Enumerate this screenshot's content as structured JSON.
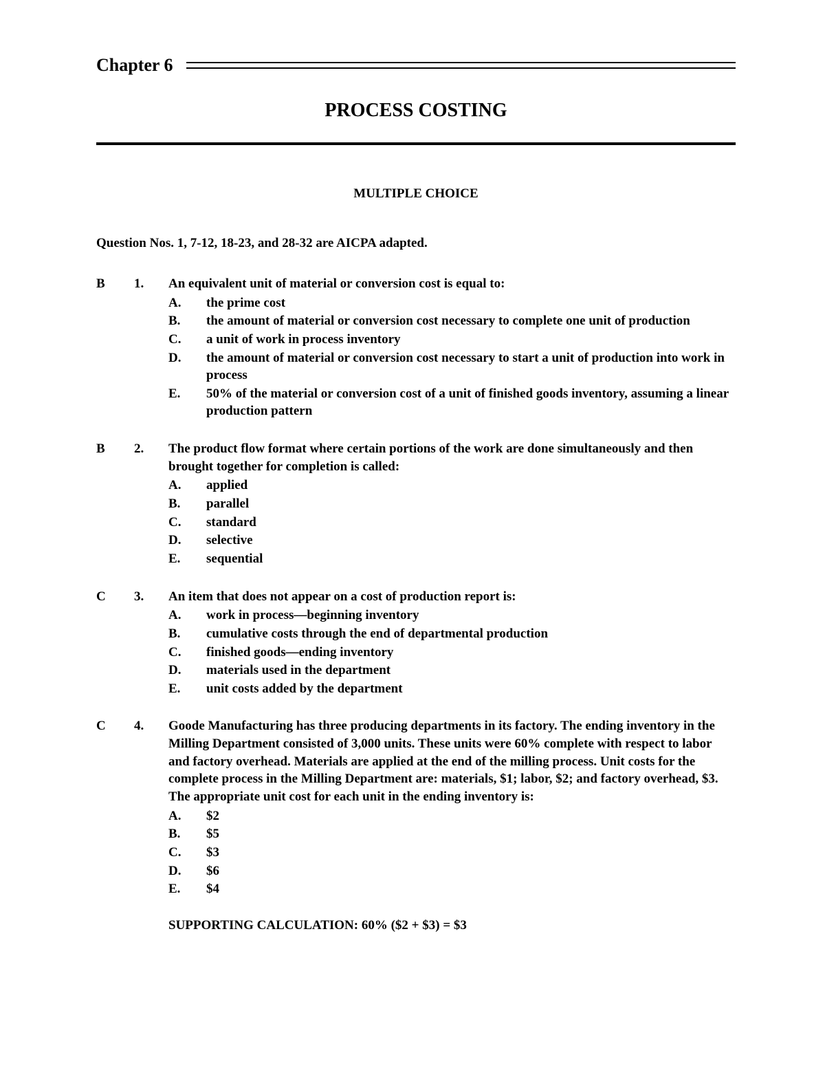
{
  "header": {
    "chapter_label": "Chapter 6",
    "main_title": "PROCESS COSTING",
    "section_title": "MULTIPLE CHOICE",
    "adapted_note": "Question Nos. 1, 7-12, 18-23, and 28-32 are AICPA adapted."
  },
  "questions": [
    {
      "answer": "B",
      "number": "1.",
      "stem": "An equivalent unit of material or conversion cost is equal to:",
      "options": [
        {
          "letter": "A.",
          "text": "the prime cost"
        },
        {
          "letter": "B.",
          "text": "the amount of material or conversion cost necessary to complete one unit of production"
        },
        {
          "letter": "C.",
          "text": "a unit of work in process inventory"
        },
        {
          "letter": "D.",
          "text": "the amount of material or conversion cost necessary to start a unit of production into work in process"
        },
        {
          "letter": "E.",
          "text": "50% of the material or conversion cost of a unit of finished goods inventory, assuming a linear production pattern"
        }
      ]
    },
    {
      "answer": "B",
      "number": "2.",
      "stem": "The product flow format where certain portions of the work are done simultaneously and then brought together for completion is called:",
      "options": [
        {
          "letter": "A.",
          "text": "applied"
        },
        {
          "letter": "B.",
          "text": "parallel"
        },
        {
          "letter": "C.",
          "text": "standard"
        },
        {
          "letter": "D.",
          "text": "selective"
        },
        {
          "letter": "E.",
          "text": "sequential"
        }
      ]
    },
    {
      "answer": "C",
      "number": "3.",
      "stem": "An item that does not appear on a cost of production report is:",
      "options": [
        {
          "letter": "A.",
          "text": "work in process—beginning inventory"
        },
        {
          "letter": "B.",
          "text": "cumulative costs through the end of departmental production"
        },
        {
          "letter": "C.",
          "text": "finished goods—ending inventory"
        },
        {
          "letter": "D.",
          "text": "materials used in the department"
        },
        {
          "letter": "E.",
          "text": "unit costs added by the department"
        }
      ]
    },
    {
      "answer": "C",
      "number": "4.",
      "stem": "Goode Manufacturing has three producing departments in its factory. The ending inventory in the Milling Department consisted of 3,000 units. These units were 60% complete with respect to labor and factory overhead. Materials are applied at the end of the milling process. Unit costs for the complete process in the Milling Department are:  materials, $1; labor, $2; and factory overhead, $3. The appropriate unit cost for each unit in the ending inventory is:",
      "options": [
        {
          "letter": "A.",
          "text": "$2"
        },
        {
          "letter": "B.",
          "text": "$5"
        },
        {
          "letter": "C.",
          "text": "$3"
        },
        {
          "letter": "D.",
          "text": "$6"
        },
        {
          "letter": "E.",
          "text": "$4"
        }
      ],
      "supporting": "SUPPORTING CALCULATION:  60% ($2 + $3) = $3"
    }
  ],
  "page_number": ""
}
